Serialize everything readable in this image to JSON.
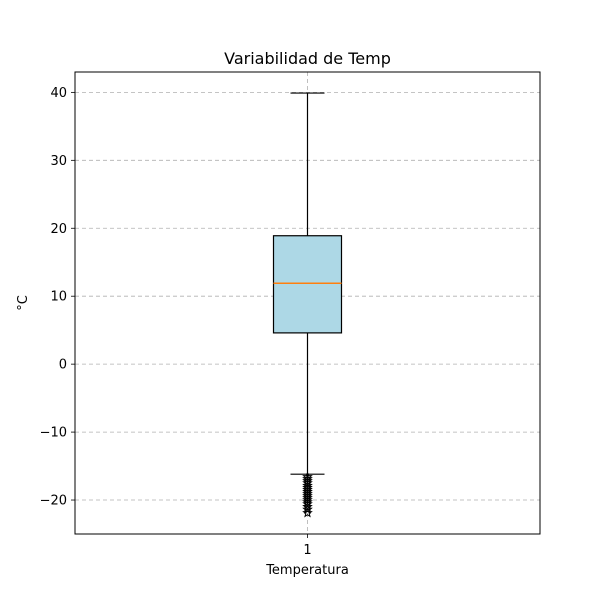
{
  "chart_data": {
    "type": "box",
    "title": "Variabilidad de Temp",
    "xlabel": "Temperatura",
    "ylabel": "°C",
    "categories": [
      "1"
    ],
    "ylim": [
      -25,
      43
    ],
    "yticks": [
      -20,
      -10,
      0,
      10,
      20,
      30,
      40
    ],
    "ytick_labels": [
      "−20",
      "−10",
      "0",
      "10",
      "20",
      "30",
      "40"
    ],
    "grid": true,
    "boxes": [
      {
        "category": "1",
        "whisker_low": -16.2,
        "q1": 4.6,
        "median": 11.9,
        "q3": 18.9,
        "whisker_high": 39.9,
        "fliers": [
          -16.6,
          -16.9,
          -17.2,
          -17.5,
          -17.9,
          -18.2,
          -18.5,
          -18.8,
          -19.1,
          -19.4,
          -19.7,
          -20.0,
          -20.3,
          -20.6,
          -21.0,
          -21.4,
          -21.9
        ]
      }
    ],
    "colors": {
      "box_fill": "#add8e6",
      "median_line": "#ff7f0e",
      "grid": "#b0b0b0"
    }
  }
}
